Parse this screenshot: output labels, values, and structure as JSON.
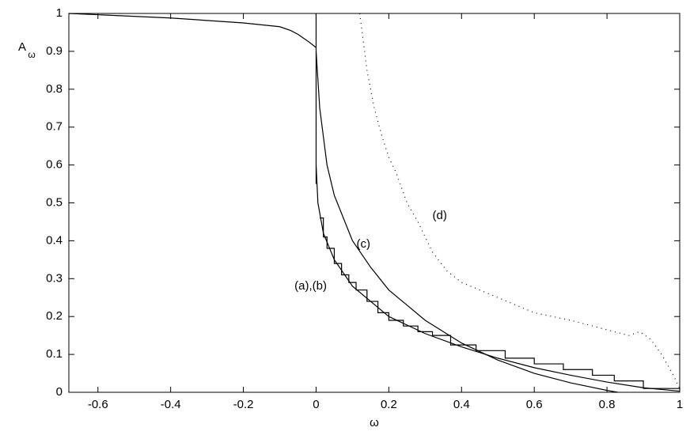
{
  "chart_data": {
    "type": "line",
    "xlabel": "ω",
    "ylabel": "A",
    "ylabel_subscript": "ω",
    "xlim": [
      -0.68,
      1
    ],
    "ylim": [
      0,
      1
    ],
    "xticks": [
      -0.6,
      -0.4,
      -0.2,
      0,
      0.2,
      0.4,
      0.6,
      0.8,
      1
    ],
    "yticks": [
      0,
      0.1,
      0.2,
      0.3,
      0.4,
      0.5,
      0.6,
      0.7,
      0.8,
      0.9,
      1
    ],
    "series": [
      {
        "color": "#000000",
        "style": "solid",
        "x": [
          -0.68,
          -0.4,
          -0.2,
          -0.1,
          -0.07,
          -0.05,
          -0.02,
          0
        ],
        "values": [
          1.0,
          0.988,
          0.975,
          0.965,
          0.955,
          0.945,
          0.925,
          0.91
        ]
      },
      {
        "color": "#000000",
        "style": "solid",
        "x": [
          0,
          0
        ],
        "values": [
          0.55,
          1.0
        ]
      },
      {
        "color": "#000000",
        "style": "solid",
        "x": [
          0,
          0.005,
          0.02,
          0.05,
          0.1,
          0.2,
          0.3,
          0.4,
          0.5,
          0.6,
          0.7,
          0.8,
          0.9,
          1.0
        ],
        "values": [
          0.6,
          0.5,
          0.42,
          0.35,
          0.28,
          0.2,
          0.155,
          0.12,
          0.09,
          0.065,
          0.045,
          0.027,
          0.012,
          0.003
        ]
      },
      {
        "color": "#000000",
        "style": "step",
        "x": [
          0.01,
          0.02,
          0.03,
          0.05,
          0.07,
          0.09,
          0.11,
          0.14,
          0.17,
          0.2,
          0.24,
          0.28,
          0.32,
          0.37,
          0.44,
          0.52,
          0.6,
          0.68,
          0.76,
          0.82,
          0.9,
          1.0
        ],
        "values": [
          0.46,
          0.41,
          0.38,
          0.34,
          0.31,
          0.29,
          0.27,
          0.24,
          0.21,
          0.19,
          0.175,
          0.16,
          0.15,
          0.125,
          0.11,
          0.09,
          0.075,
          0.06,
          0.045,
          0.03,
          0.01,
          0.005
        ]
      },
      {
        "color": "#000000",
        "style": "solid",
        "x": [
          0,
          0.01,
          0.03,
          0.05,
          0.1,
          0.15,
          0.2,
          0.3,
          0.4,
          0.5,
          0.6,
          0.7,
          0.8,
          0.83
        ],
        "values": [
          0.9,
          0.75,
          0.6,
          0.52,
          0.4,
          0.33,
          0.27,
          0.19,
          0.13,
          0.085,
          0.05,
          0.025,
          0.005,
          0
        ]
      },
      {
        "color": "#000000",
        "style": "dotted",
        "x": [
          0.12,
          0.14,
          0.16,
          0.18,
          0.2,
          0.22,
          0.25,
          0.28,
          0.32,
          0.36,
          0.4,
          0.5,
          0.6,
          0.7,
          0.8,
          0.86,
          0.89,
          0.92,
          0.95,
          0.98,
          1.0
        ],
        "values": [
          1.0,
          0.85,
          0.75,
          0.68,
          0.62,
          0.58,
          0.5,
          0.45,
          0.37,
          0.32,
          0.29,
          0.25,
          0.21,
          0.19,
          0.165,
          0.15,
          0.16,
          0.14,
          0.1,
          0.05,
          0.01
        ]
      }
    ],
    "annotations": [
      {
        "text": "(a),(b)",
        "x": -0.015,
        "y": 0.28
      },
      {
        "text": "(c)",
        "x": 0.13,
        "y": 0.39
      },
      {
        "text": "(d)",
        "x": 0.34,
        "y": 0.465
      }
    ]
  }
}
